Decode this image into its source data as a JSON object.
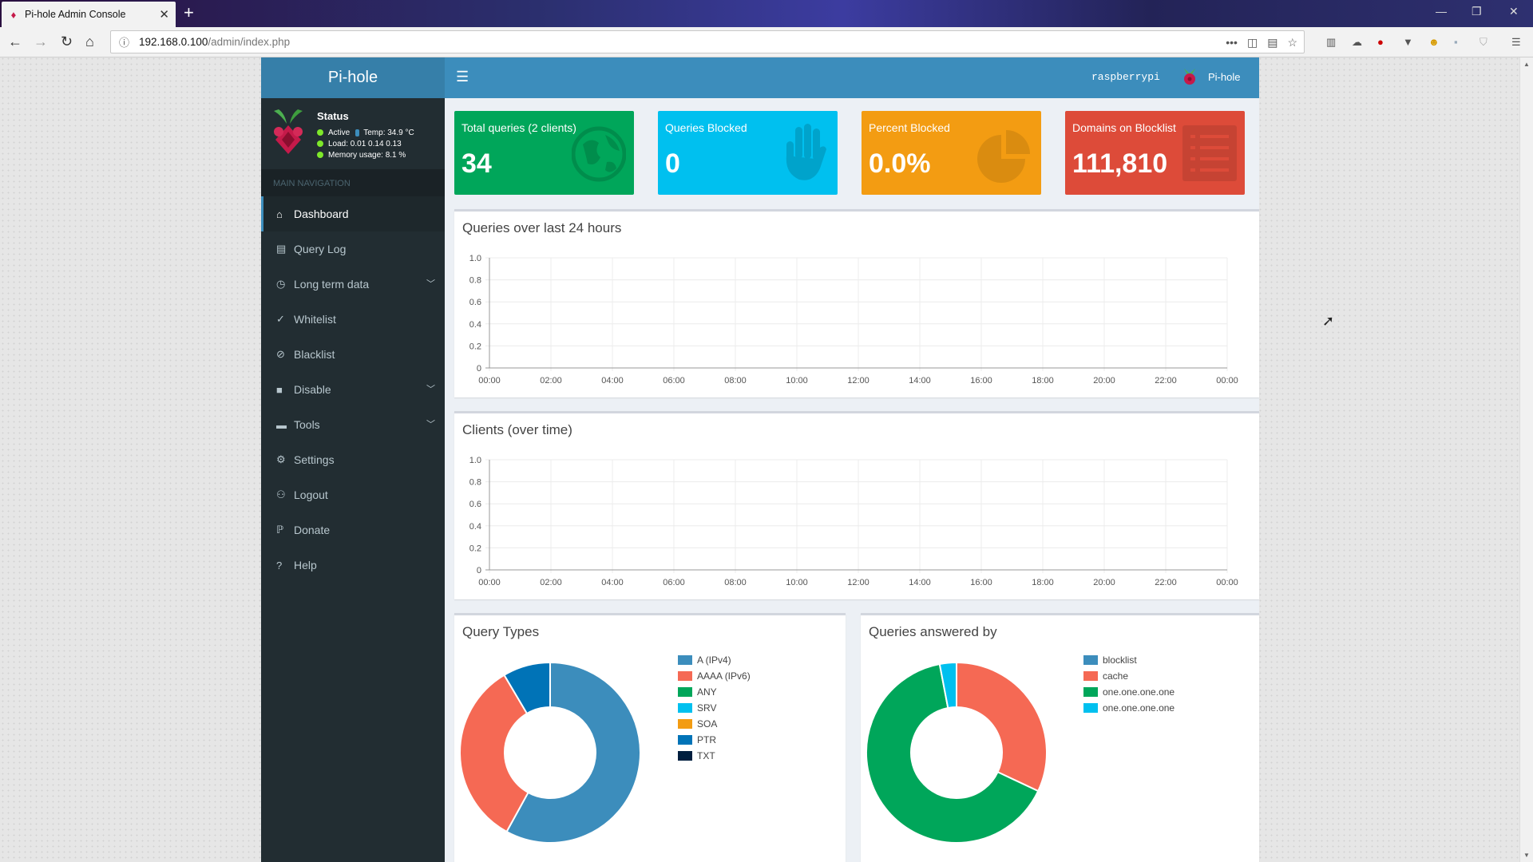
{
  "browser": {
    "tab_title": "Pi-hole Admin Console",
    "url_host": "192.168.0.100",
    "url_path": "/admin/index.php"
  },
  "header": {
    "logo": "Pi-hole",
    "hostname": "raspberrypi",
    "user_label": "Pi-hole"
  },
  "status": {
    "title": "Status",
    "active": "Active",
    "temp": "Temp: 34.9 °C",
    "load": "Load:  0.01  0.14  0.13",
    "memory": "Memory usage:  8.1 %"
  },
  "nav": {
    "header": "MAIN NAVIGATION",
    "items": [
      {
        "label": "Dashboard",
        "icon": "home-icon"
      },
      {
        "label": "Query Log",
        "icon": "file-icon"
      },
      {
        "label": "Long term data",
        "icon": "clock-icon"
      },
      {
        "label": "Whitelist",
        "icon": "check-circle-icon"
      },
      {
        "label": "Blacklist",
        "icon": "ban-icon"
      },
      {
        "label": "Disable",
        "icon": "stop-icon"
      },
      {
        "label": "Tools",
        "icon": "folder-icon"
      },
      {
        "label": "Settings",
        "icon": "gears-icon"
      },
      {
        "label": "Logout",
        "icon": "user-times-icon"
      },
      {
        "label": "Donate",
        "icon": "paypal-icon"
      },
      {
        "label": "Help",
        "icon": "question-icon"
      }
    ]
  },
  "stats": [
    {
      "label": "Total queries (2 clients)",
      "value": "34",
      "color": "#00a65a"
    },
    {
      "label": "Queries Blocked",
      "value": "0",
      "color": "#00c0ef"
    },
    {
      "label": "Percent Blocked",
      "value": "0.0%",
      "color": "#f39c12"
    },
    {
      "label": "Domains on Blocklist",
      "value": "111,810",
      "color": "#dd4b39"
    }
  ],
  "charts": {
    "queries_title": "Queries over last 24 hours",
    "clients_title": "Clients (over time)",
    "query_types_title": "Query Types",
    "answered_by_title": "Queries answered by"
  },
  "chart_data": [
    {
      "type": "line",
      "title": "Queries over last 24 hours",
      "x": [
        "00:00",
        "02:00",
        "04:00",
        "06:00",
        "08:00",
        "10:00",
        "12:00",
        "14:00",
        "16:00",
        "18:00",
        "20:00",
        "22:00",
        "00:00"
      ],
      "y_ticks": [
        "1.0",
        "0.8",
        "0.6",
        "0.4",
        "0.2",
        "0"
      ],
      "ylim": [
        0,
        1
      ],
      "series": []
    },
    {
      "type": "line",
      "title": "Clients (over time)",
      "x": [
        "00:00",
        "02:00",
        "04:00",
        "06:00",
        "08:00",
        "10:00",
        "12:00",
        "14:00",
        "16:00",
        "18:00",
        "20:00",
        "22:00",
        "00:00"
      ],
      "y_ticks": [
        "1.0",
        "0.8",
        "0.6",
        "0.4",
        "0.2",
        "0"
      ],
      "ylim": [
        0,
        1
      ],
      "series": []
    },
    {
      "type": "pie",
      "title": "Query Types",
      "labels": [
        "A (IPv4)",
        "AAAA (IPv6)",
        "ANY",
        "SRV",
        "SOA",
        "PTR",
        "TXT"
      ],
      "values": [
        58.0,
        33.5,
        0,
        0,
        0,
        8.5,
        0
      ],
      "colors": [
        "#3c8dbc",
        "#f56954",
        "#00a65a",
        "#00c0ef",
        "#f39c12",
        "#0073b7",
        "#001f3f"
      ]
    },
    {
      "type": "pie",
      "title": "Queries answered by",
      "labels": [
        "blocklist",
        "cache",
        "one.one.one.one",
        "one.one.one.one"
      ],
      "values": [
        0,
        32,
        65,
        3
      ],
      "colors": [
        "#3c8dbc",
        "#f56954",
        "#00a65a",
        "#00c0ef"
      ]
    }
  ]
}
